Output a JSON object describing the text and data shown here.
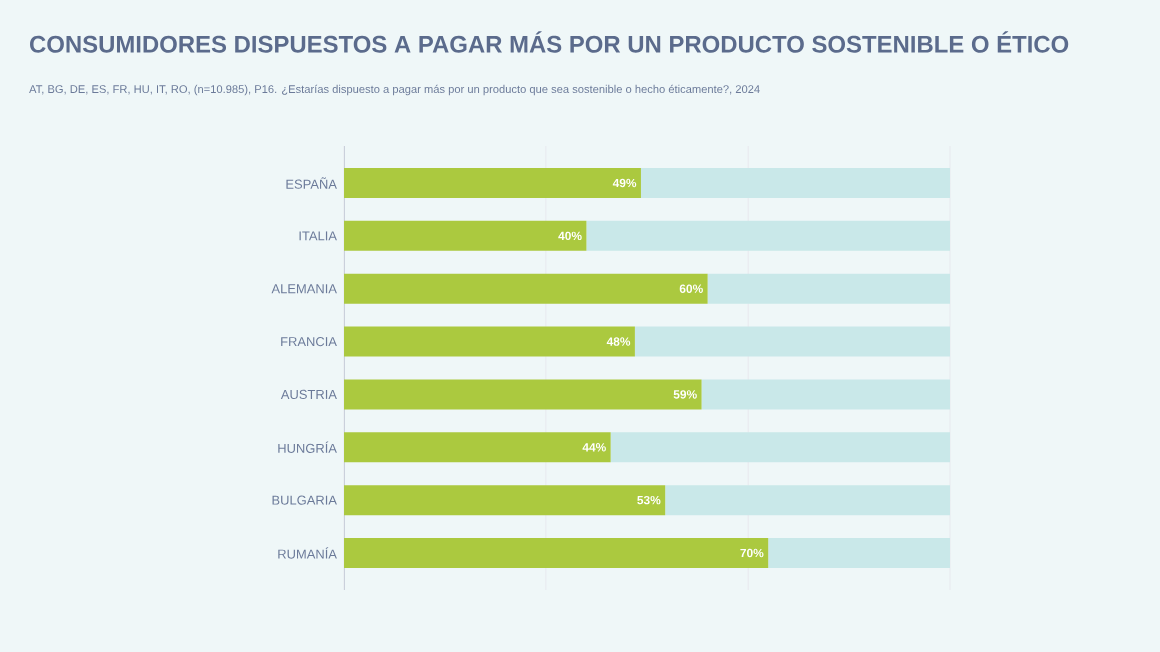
{
  "chart_data": {
    "type": "bar",
    "orientation": "horizontal",
    "stacked": true,
    "title": "CONSUMIDORES DISPUESTOS A PAGAR MÁS POR UN PRODUCTO SOSTENIBLE O ÉTICO",
    "subtitle": "AT, BG, DE, ES, FR, HU, IT, RO, (n=10.985), P16. ¿Estarías dispuesto a pagar más por un producto que sea sostenible o hecho éticamente?, 2024",
    "categories": [
      "ESPAÑA",
      "ITALIA",
      "ALEMANIA",
      "FRANCIA",
      "AUSTRIA",
      "HUNGRÍA",
      "BULGARIA",
      "RUMANÍA"
    ],
    "series": [
      {
        "color": "#abc93f",
        "values": [
          49,
          40,
          60,
          48,
          59,
          44,
          53,
          70
        ],
        "value_labels": [
          "49%",
          "40%",
          "60%",
          "48%",
          "59%",
          "44%",
          "53%",
          "70%"
        ]
      },
      {
        "color": "#c9e8e9",
        "values": [
          51,
          60,
          40,
          52,
          41,
          56,
          47,
          30
        ]
      }
    ],
    "xlim": [
      0,
      100
    ],
    "xticks": [
      {
        "value": 0,
        "label": null
      },
      {
        "value": 33.3,
        "label": null
      },
      {
        "value": 66.7,
        "label": null
      },
      {
        "value": 100,
        "label": null
      }
    ],
    "tick_labels": "y",
    "grid": "x"
  }
}
